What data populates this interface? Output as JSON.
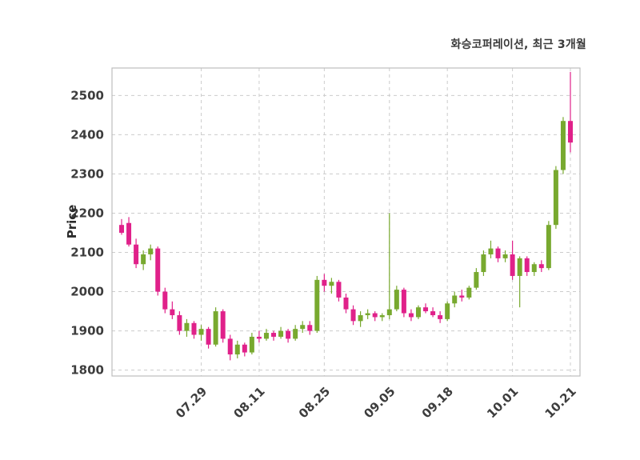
{
  "colors": {
    "up": "#78a92f",
    "down": "#e0218a",
    "grid": "#cccccc",
    "border": "#bdbdbd",
    "tick_text": "#3d3d3d",
    "background": "#ffffff"
  },
  "chart_data": {
    "type": "candlestick",
    "title": "화승코퍼레이션, 최근 3개월",
    "ylabel": "Price",
    "xlabel": "",
    "grid": "dashed",
    "legend": "none",
    "ylim": [
      1785,
      2570
    ],
    "y_ticks": [
      1800,
      1900,
      2000,
      2100,
      2200,
      2300,
      2400,
      2500
    ],
    "x_tick_labels": [
      "07.29",
      "08.11",
      "08.25",
      "09.05",
      "09.18",
      "10.01",
      "10.21"
    ],
    "x_tick_indices": [
      11,
      19,
      28,
      37,
      45,
      54,
      62
    ],
    "ohlc_format": [
      "open",
      "high",
      "low",
      "close"
    ],
    "candles": [
      [
        2170,
        2185,
        2145,
        2150
      ],
      [
        2175,
        2190,
        2115,
        2120
      ],
      [
        2120,
        2135,
        2060,
        2070
      ],
      [
        2070,
        2105,
        2055,
        2095
      ],
      [
        2095,
        2120,
        2080,
        2110
      ],
      [
        2110,
        2115,
        1990,
        2000
      ],
      [
        2000,
        2010,
        1945,
        1955
      ],
      [
        1955,
        1975,
        1930,
        1940
      ],
      [
        1940,
        1950,
        1890,
        1900
      ],
      [
        1900,
        1930,
        1885,
        1920
      ],
      [
        1920,
        1925,
        1880,
        1890
      ],
      [
        1890,
        1915,
        1875,
        1905
      ],
      [
        1905,
        1910,
        1855,
        1865
      ],
      [
        1865,
        1960,
        1860,
        1950
      ],
      [
        1950,
        1955,
        1870,
        1880
      ],
      [
        1880,
        1890,
        1825,
        1840
      ],
      [
        1840,
        1875,
        1830,
        1865
      ],
      [
        1865,
        1870,
        1835,
        1845
      ],
      [
        1845,
        1895,
        1840,
        1885
      ],
      [
        1885,
        1900,
        1870,
        1880
      ],
      [
        1880,
        1905,
        1875,
        1895
      ],
      [
        1895,
        1900,
        1875,
        1885
      ],
      [
        1885,
        1910,
        1880,
        1900
      ],
      [
        1900,
        1905,
        1870,
        1880
      ],
      [
        1880,
        1915,
        1875,
        1905
      ],
      [
        1905,
        1925,
        1895,
        1915
      ],
      [
        1915,
        1925,
        1890,
        1900
      ],
      [
        1900,
        2040,
        1895,
        2030
      ],
      [
        2030,
        2045,
        2000,
        2015
      ],
      [
        2015,
        2035,
        1995,
        2025
      ],
      [
        2025,
        2030,
        1975,
        1985
      ],
      [
        1985,
        1995,
        1945,
        1955
      ],
      [
        1955,
        1965,
        1915,
        1925
      ],
      [
        1925,
        1950,
        1910,
        1940
      ],
      [
        1940,
        1955,
        1930,
        1945
      ],
      [
        1945,
        1950,
        1925,
        1935
      ],
      [
        1935,
        1945,
        1925,
        1940
      ],
      [
        1940,
        2200,
        1930,
        1955
      ],
      [
        1955,
        2015,
        1950,
        2005
      ],
      [
        2005,
        2010,
        1935,
        1945
      ],
      [
        1945,
        1955,
        1925,
        1935
      ],
      [
        1935,
        1965,
        1930,
        1960
      ],
      [
        1960,
        1970,
        1945,
        1950
      ],
      [
        1950,
        1960,
        1935,
        1940
      ],
      [
        1940,
        1950,
        1920,
        1930
      ],
      [
        1930,
        1975,
        1925,
        1970
      ],
      [
        1970,
        2000,
        1960,
        1990
      ],
      [
        1990,
        2005,
        1975,
        1985
      ],
      [
        1985,
        2015,
        1980,
        2010
      ],
      [
        2010,
        2060,
        2005,
        2050
      ],
      [
        2050,
        2105,
        2040,
        2095
      ],
      [
        2095,
        2130,
        2085,
        2110
      ],
      [
        2110,
        2115,
        2075,
        2085
      ],
      [
        2085,
        2105,
        2075,
        2095
      ],
      [
        2095,
        2130,
        2030,
        2040
      ],
      [
        2040,
        2090,
        1960,
        2085
      ],
      [
        2085,
        2090,
        2040,
        2050
      ],
      [
        2050,
        2075,
        2040,
        2070
      ],
      [
        2070,
        2080,
        2050,
        2060
      ],
      [
        2060,
        2180,
        2055,
        2170
      ],
      [
        2170,
        2320,
        2160,
        2310
      ],
      [
        2310,
        2445,
        2300,
        2435
      ],
      [
        2435,
        2560,
        2355,
        2380
      ]
    ]
  }
}
